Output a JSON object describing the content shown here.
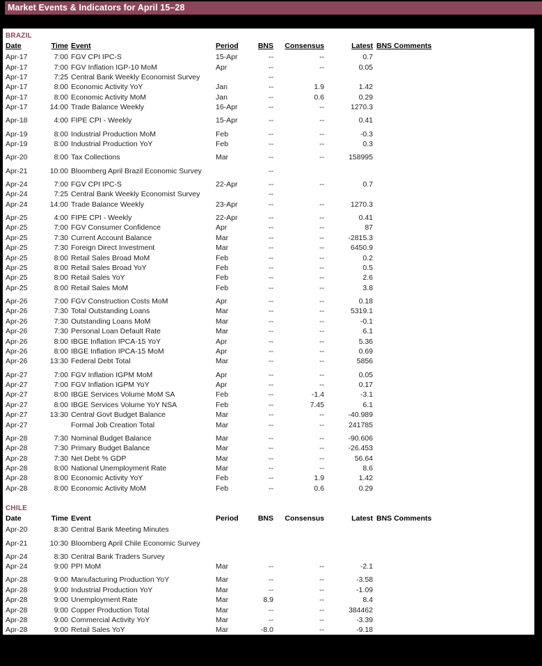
{
  "title_bar": {
    "title": "Market Events & Indicators for April 15–28"
  },
  "colors": {
    "accent": "#8C4659",
    "page_bg": "#000000",
    "panel_bg": "#FFFFFF",
    "text": "#1F1B1C"
  },
  "columns": [
    "Date",
    "Time",
    "Event",
    "Period",
    "BNS",
    "Consensus",
    "Latest",
    "BNS Comments"
  ],
  "sections": [
    {
      "name": "BRAZIL",
      "header_underline": true,
      "rows": [
        {
          "date": "Apr-17",
          "time": "7:00",
          "event": "FGV CPI IPC-S",
          "period": "15-Apr",
          "bns": "--",
          "consensus": "--",
          "latest": "0.7"
        },
        {
          "date": "Apr-17",
          "time": "7:00",
          "event": "FGV Inflation IGP-10 MoM",
          "period": "Apr",
          "bns": "--",
          "consensus": "--",
          "latest": "0.05"
        },
        {
          "date": "Apr-17",
          "time": "7:25",
          "event": "Central Bank Weekly Economist Survey",
          "period": "",
          "bns": "--",
          "consensus": "",
          "latest": ""
        },
        {
          "date": "Apr-17",
          "time": "8:00",
          "event": "Economic Activity YoY",
          "period": "Jan",
          "bns": "--",
          "consensus": "1.9",
          "latest": "1.42"
        },
        {
          "date": "Apr-17",
          "time": "8:00",
          "event": "Economic Activity MoM",
          "period": "Jan",
          "bns": "--",
          "consensus": "0.6",
          "latest": "0.29"
        },
        {
          "date": "Apr-17",
          "time": "14:00",
          "event": "Trade Balance Weekly",
          "period": "16-Apr",
          "bns": "--",
          "consensus": "--",
          "latest": "1270.3"
        },
        {
          "date": "Apr-18",
          "time": "4:00",
          "event": "FIPE CPI - Weekly",
          "period": "15-Apr",
          "bns": "--",
          "consensus": "--",
          "latest": "0.41"
        },
        {
          "date": "Apr-19",
          "time": "8:00",
          "event": "Industrial Production MoM",
          "period": "Feb",
          "bns": "--",
          "consensus": "--",
          "latest": "-0.3"
        },
        {
          "date": "Apr-19",
          "time": "8:00",
          "event": "Industrial Production YoY",
          "period": "Feb",
          "bns": "--",
          "consensus": "--",
          "latest": "0.3"
        },
        {
          "date": "Apr-20",
          "time": "8:00",
          "event": "Tax Collections",
          "period": "Mar",
          "bns": "--",
          "consensus": "--",
          "latest": "158995"
        },
        {
          "date": "Apr-21",
          "time": "10:00",
          "event": "Bloomberg April Brazil Economic Survey",
          "period": "",
          "bns": "--",
          "consensus": "",
          "latest": ""
        },
        {
          "date": "Apr-24",
          "time": "7:00",
          "event": "FGV CPI IPC-S",
          "period": "22-Apr",
          "bns": "--",
          "consensus": "--",
          "latest": "0.7"
        },
        {
          "date": "Apr-24",
          "time": "7:25",
          "event": "Central Bank Weekly Economist Survey",
          "period": "",
          "bns": "--",
          "consensus": "",
          "latest": ""
        },
        {
          "date": "Apr-24",
          "time": "14:00",
          "event": "Trade Balance Weekly",
          "period": "23-Apr",
          "bns": "--",
          "consensus": "--",
          "latest": "1270.3"
        },
        {
          "date": "Apr-25",
          "time": "4:00",
          "event": "FIPE CPI - Weekly",
          "period": "22-Apr",
          "bns": "--",
          "consensus": "--",
          "latest": "0.41"
        },
        {
          "date": "Apr-25",
          "time": "7:00",
          "event": "FGV Consumer Confidence",
          "period": "Apr",
          "bns": "--",
          "consensus": "--",
          "latest": "87"
        },
        {
          "date": "Apr-25",
          "time": "7:30",
          "event": "Current Account Balance",
          "period": "Mar",
          "bns": "--",
          "consensus": "--",
          "latest": "-2815.3"
        },
        {
          "date": "Apr-25",
          "time": "7:30",
          "event": "Foreign Direct Investment",
          "period": "Mar",
          "bns": "--",
          "consensus": "--",
          "latest": "6450.9"
        },
        {
          "date": "Apr-25",
          "time": "8:00",
          "event": "Retail Sales Broad MoM",
          "period": "Feb",
          "bns": "--",
          "consensus": "--",
          "latest": "0.2"
        },
        {
          "date": "Apr-25",
          "time": "8:00",
          "event": "Retail Sales Broad YoY",
          "period": "Feb",
          "bns": "--",
          "consensus": "--",
          "latest": "0.5"
        },
        {
          "date": "Apr-25",
          "time": "8:00",
          "event": "Retail Sales YoY",
          "period": "Feb",
          "bns": "--",
          "consensus": "--",
          "latest": "2.6"
        },
        {
          "date": "Apr-25",
          "time": "8:00",
          "event": "Retail Sales MoM",
          "period": "Feb",
          "bns": "--",
          "consensus": "--",
          "latest": "3.8"
        },
        {
          "date": "Apr-26",
          "time": "7:00",
          "event": "FGV Construction Costs MoM",
          "period": "Apr",
          "bns": "--",
          "consensus": "--",
          "latest": "0.18"
        },
        {
          "date": "Apr-26",
          "time": "7:30",
          "event": "Total Outstanding Loans",
          "period": "Mar",
          "bns": "--",
          "consensus": "--",
          "latest": "5319.1"
        },
        {
          "date": "Apr-26",
          "time": "7:30",
          "event": "Outstanding Loans MoM",
          "period": "Mar",
          "bns": "--",
          "consensus": "--",
          "latest": "-0.1"
        },
        {
          "date": "Apr-26",
          "time": "7:30",
          "event": "Personal Loan Default Rate",
          "period": "Mar",
          "bns": "--",
          "consensus": "--",
          "latest": "6.1"
        },
        {
          "date": "Apr-26",
          "time": "8:00",
          "event": "IBGE Inflation IPCA-15 YoY",
          "period": "Apr",
          "bns": "--",
          "consensus": "--",
          "latest": "5.36"
        },
        {
          "date": "Apr-26",
          "time": "8:00",
          "event": "IBGE Inflation IPCA-15 MoM",
          "period": "Apr",
          "bns": "--",
          "consensus": "--",
          "latest": "0.69"
        },
        {
          "date": "Apr-26",
          "time": "13:30",
          "event": "Federal Debt Total",
          "period": "Mar",
          "bns": "--",
          "consensus": "--",
          "latest": "5856"
        },
        {
          "date": "Apr-27",
          "time": "7:00",
          "event": "FGV Inflation IGPM MoM",
          "period": "Apr",
          "bns": "--",
          "consensus": "--",
          "latest": "0.05"
        },
        {
          "date": "Apr-27",
          "time": "7:00",
          "event": "FGV Inflation IGPM YoY",
          "period": "Apr",
          "bns": "--",
          "consensus": "--",
          "latest": "0.17"
        },
        {
          "date": "Apr-27",
          "time": "8:00",
          "event": "IBGE Services Volume MoM SA",
          "period": "Feb",
          "bns": "--",
          "consensus": "-1.4",
          "latest": "-3.1"
        },
        {
          "date": "Apr-27",
          "time": "8:00",
          "event": "IBGE Services Volume YoY NSA",
          "period": "Feb",
          "bns": "--",
          "consensus": "7.45",
          "latest": "6.1"
        },
        {
          "date": "Apr-27",
          "time": "13:30",
          "event": "Central Govt Budget Balance",
          "period": "Mar",
          "bns": "--",
          "consensus": "--",
          "latest": "-40.989"
        },
        {
          "date": "Apr-27",
          "time": "",
          "event": "Formal Job Creation Total",
          "period": "Mar",
          "bns": "--",
          "consensus": "--",
          "latest": "241785"
        },
        {
          "date": "Apr-28",
          "time": "7:30",
          "event": "Nominal Budget Balance",
          "period": "Mar",
          "bns": "--",
          "consensus": "--",
          "latest": "-90.606"
        },
        {
          "date": "Apr-28",
          "time": "7:30",
          "event": "Primary Budget Balance",
          "period": "Mar",
          "bns": "--",
          "consensus": "--",
          "latest": "-26.453"
        },
        {
          "date": "Apr-28",
          "time": "7:30",
          "event": "Net Debt % GDP",
          "period": "Mar",
          "bns": "--",
          "consensus": "--",
          "latest": "56.64"
        },
        {
          "date": "Apr-28",
          "time": "8:00",
          "event": "National Unemployment Rate",
          "period": "Mar",
          "bns": "--",
          "consensus": "--",
          "latest": "8.6"
        },
        {
          "date": "Apr-28",
          "time": "8:00",
          "event": "Economic Activity YoY",
          "period": "Feb",
          "bns": "--",
          "consensus": "1.9",
          "latest": "1.42"
        },
        {
          "date": "Apr-28",
          "time": "8:00",
          "event": "Economic Activity MoM",
          "period": "Feb",
          "bns": "--",
          "consensus": "0.6",
          "latest": "0.29"
        }
      ]
    },
    {
      "name": "CHILE",
      "header_underline": false,
      "rows": [
        {
          "date": "Apr-20",
          "time": "8:30",
          "event": "Central Bank Meeting Minutes",
          "period": "",
          "bns": "",
          "consensus": "",
          "latest": ""
        },
        {
          "date": "Apr-21",
          "time": "10:30",
          "event": "Bloomberg April Chile Economic Survey",
          "period": "",
          "bns": "",
          "consensus": "",
          "latest": ""
        },
        {
          "date": "Apr-24",
          "time": "8:30",
          "event": "Central Bank Traders Survey",
          "period": "",
          "bns": "",
          "consensus": "",
          "latest": ""
        },
        {
          "date": "Apr-24",
          "time": "9:00",
          "event": "PPI MoM",
          "period": "Mar",
          "bns": "--",
          "consensus": "--",
          "latest": "-2.1"
        },
        {
          "date": "Apr-28",
          "time": "9:00",
          "event": "Manufacturing Production YoY",
          "period": "Mar",
          "bns": "--",
          "consensus": "--",
          "latest": "-3.58"
        },
        {
          "date": "Apr-28",
          "time": "9:00",
          "event": "Industrial Production YoY",
          "period": "Mar",
          "bns": "--",
          "consensus": "--",
          "latest": "-1.09"
        },
        {
          "date": "Apr-28",
          "time": "9:00",
          "event": "Unemployment Rate",
          "period": "Mar",
          "bns": "8.9",
          "consensus": "--",
          "latest": "8.4"
        },
        {
          "date": "Apr-28",
          "time": "9:00",
          "event": "Copper Production Total",
          "period": "Mar",
          "bns": "--",
          "consensus": "--",
          "latest": "384462"
        },
        {
          "date": "Apr-28",
          "time": "9:00",
          "event": "Commercial Activity YoY",
          "period": "Mar",
          "bns": "--",
          "consensus": "--",
          "latest": "-3.39"
        },
        {
          "date": "Apr-28",
          "time": "9:00",
          "event": "Retail Sales YoY",
          "period": "Mar",
          "bns": "-8.0",
          "consensus": "--",
          "latest": "-9.18"
        }
      ]
    }
  ]
}
